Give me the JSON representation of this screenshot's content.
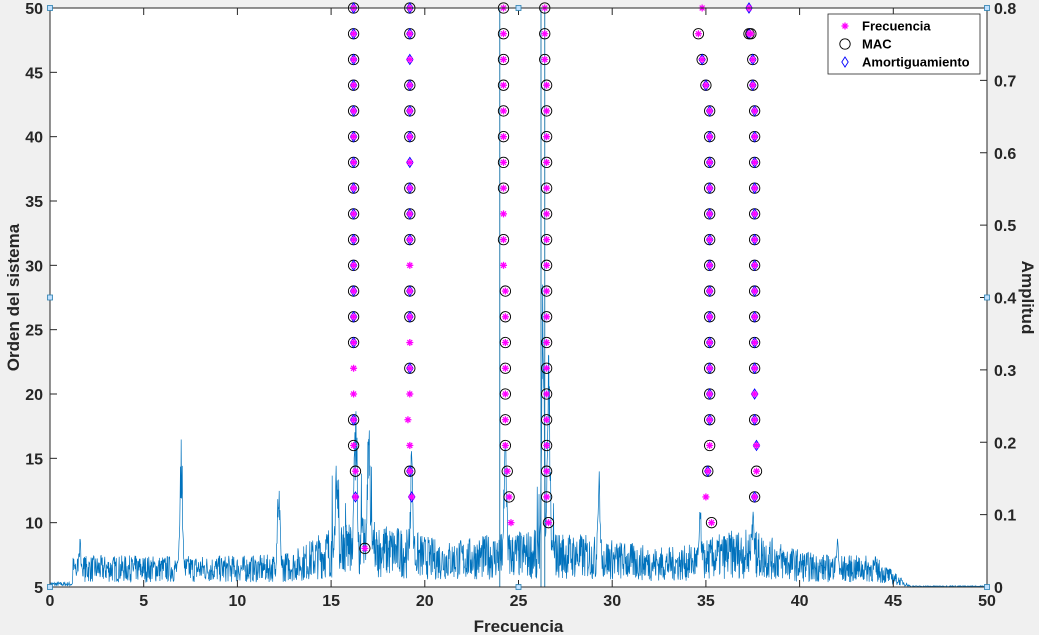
{
  "chart_data": {
    "type": "scatter",
    "title": "",
    "xlabel": "Frecuencia",
    "ylabel_left": "Orden del sistema",
    "ylabel_right": "Amplitud",
    "xlim": [
      0,
      50
    ],
    "ylim_left": [
      5,
      50
    ],
    "ylim_right": [
      0,
      0.8
    ],
    "x_ticks": [
      "0",
      "5",
      "10",
      "15",
      "20",
      "25",
      "30",
      "35",
      "40",
      "45",
      "50"
    ],
    "y_left_ticks": [
      "5",
      "10",
      "15",
      "20",
      "25",
      "30",
      "35",
      "40",
      "45",
      "50"
    ],
    "y_right_ticks": [
      "0",
      "0.1",
      "0.2",
      "0.3",
      "0.4",
      "0.5",
      "0.6",
      "0.7",
      "0.8"
    ],
    "grid": false,
    "legend_position": "top-right",
    "colors": {
      "spectrum": "#0072bd",
      "frecuencia": "#ff00ff",
      "mac": "#000000",
      "amortiguamiento": "#0000ff",
      "background": "#ffffff",
      "figure": "#f0f0f0"
    },
    "legend": [
      {
        "label": "Frecuencia",
        "marker": "asterisk"
      },
      {
        "label": "MAC",
        "marker": "circle"
      },
      {
        "label": "Amortiguamiento",
        "marker": "diamond"
      }
    ],
    "vertical_lines_x": [
      24.0,
      26.2,
      26.4
    ],
    "stability_columns": [
      {
        "x": [
          16.3,
          16.3,
          16.2,
          16.2,
          16.2,
          16.2,
          16.2,
          16.2,
          16.2,
          16.2,
          16.2,
          16.2,
          16.2,
          16.2,
          16.2,
          16.2,
          16.2,
          16.2,
          16.2,
          16.2
        ],
        "orders": [
          12,
          14,
          16,
          18,
          20,
          22,
          24,
          26,
          28,
          30,
          32,
          34,
          36,
          38,
          40,
          42,
          44,
          46,
          48,
          50
        ],
        "mac": [
          0,
          1,
          1,
          1,
          0,
          0,
          1,
          1,
          1,
          1,
          1,
          1,
          1,
          1,
          1,
          1,
          1,
          1,
          1,
          1
        ],
        "damp": [
          1,
          0,
          0,
          1,
          0,
          0,
          1,
          1,
          1,
          1,
          1,
          1,
          1,
          1,
          1,
          1,
          1,
          1,
          1,
          1
        ]
      },
      {
        "x": [
          16.8
        ],
        "orders": [
          8
        ],
        "mac": [
          1
        ],
        "damp": [
          0
        ]
      },
      {
        "x": [
          19.3,
          19.2,
          19.2,
          19.1,
          19.2,
          19.2,
          19.2,
          19.2,
          19.2,
          19.2,
          19.2,
          19.2,
          19.2,
          19.2,
          19.2,
          19.2,
          19.2,
          19.2,
          19.2,
          19.2
        ],
        "orders": [
          12,
          14,
          16,
          18,
          20,
          22,
          24,
          26,
          28,
          30,
          32,
          34,
          36,
          38,
          40,
          42,
          44,
          46,
          48,
          50
        ],
        "mac": [
          0,
          1,
          0,
          0,
          0,
          1,
          0,
          1,
          1,
          0,
          1,
          1,
          1,
          0,
          1,
          1,
          1,
          0,
          1,
          1
        ],
        "damp": [
          1,
          1,
          0,
          0,
          0,
          1,
          0,
          1,
          1,
          0,
          1,
          1,
          1,
          1,
          1,
          1,
          1,
          1,
          1,
          1
        ]
      },
      {
        "x": [
          24.6,
          24.5,
          24.4,
          24.3,
          24.3,
          24.3,
          24.3,
          24.3,
          24.3,
          24.3,
          24.2,
          24.2,
          24.2,
          24.2,
          24.2,
          24.2,
          24.2,
          24.2,
          24.2,
          24.2,
          24.2
        ],
        "orders": [
          10,
          12,
          14,
          16,
          18,
          20,
          22,
          24,
          26,
          28,
          30,
          32,
          34,
          36,
          38,
          40,
          42,
          44,
          46,
          48,
          50
        ],
        "mac": [
          0,
          1,
          1,
          1,
          1,
          1,
          1,
          1,
          1,
          1,
          0,
          1,
          0,
          1,
          1,
          1,
          1,
          1,
          1,
          1,
          1
        ],
        "damp": [
          0,
          0,
          0,
          0,
          0,
          0,
          0,
          0,
          0,
          0,
          0,
          0,
          0,
          0,
          0,
          0,
          0,
          0,
          0,
          0,
          0
        ]
      },
      {
        "x": [
          26.6,
          26.5,
          26.5,
          26.5,
          26.5,
          26.5,
          26.5,
          26.5,
          26.5,
          26.5,
          26.5,
          26.5,
          26.5,
          26.5,
          26.5,
          26.5,
          26.5,
          26.5,
          26.4,
          26.4,
          26.4
        ],
        "orders": [
          10,
          12,
          14,
          16,
          18,
          20,
          22,
          24,
          26,
          28,
          30,
          32,
          34,
          36,
          38,
          40,
          42,
          44,
          46,
          48,
          50
        ],
        "mac": [
          1,
          1,
          1,
          1,
          1,
          1,
          1,
          1,
          1,
          1,
          1,
          1,
          1,
          1,
          1,
          1,
          1,
          1,
          1,
          1,
          1
        ],
        "damp": [
          0,
          0,
          0,
          0,
          0,
          0,
          0,
          0,
          0,
          0,
          0,
          0,
          0,
          0,
          0,
          0,
          0,
          0,
          0,
          0,
          0
        ]
      },
      {
        "x": [
          35.3,
          35.0,
          35.1,
          35.2,
          35.2,
          35.2,
          35.2,
          35.2,
          35.2,
          35.2,
          35.2,
          35.2,
          35.2,
          35.2,
          35.2,
          35.2,
          35.2,
          35.0,
          34.8,
          34.6
        ],
        "orders": [
          10,
          12,
          14,
          16,
          18,
          20,
          22,
          24,
          26,
          28,
          30,
          32,
          34,
          36,
          38,
          40,
          42,
          44,
          46,
          48
        ],
        "mac": [
          1,
          0,
          1,
          1,
          1,
          1,
          1,
          1,
          1,
          1,
          1,
          1,
          1,
          1,
          1,
          1,
          1,
          1,
          1,
          1
        ],
        "damp": [
          0,
          0,
          1,
          0,
          1,
          1,
          1,
          1,
          1,
          1,
          1,
          1,
          1,
          1,
          1,
          1,
          1,
          1,
          1,
          0
        ]
      },
      {
        "x": [
          34.8
        ],
        "orders": [
          50
        ],
        "mac": [
          0
        ],
        "damp": [
          0
        ]
      },
      {
        "x": [
          37.6,
          37.7,
          37.7,
          37.6,
          37.6,
          37.6,
          37.6,
          37.6,
          37.6,
          37.6,
          37.6,
          37.6,
          37.6,
          37.6,
          37.6,
          37.6,
          37.5,
          37.5,
          37.3,
          37.3,
          37.4
        ],
        "orders": [
          12,
          14,
          16,
          18,
          20,
          22,
          24,
          26,
          28,
          30,
          32,
          34,
          36,
          38,
          40,
          42,
          44,
          46,
          48,
          50,
          48
        ],
        "mac": [
          1,
          1,
          0,
          1,
          0,
          1,
          1,
          1,
          1,
          1,
          1,
          1,
          1,
          1,
          1,
          1,
          1,
          1,
          1,
          0,
          1
        ],
        "damp": [
          1,
          0,
          1,
          1,
          1,
          1,
          1,
          1,
          1,
          1,
          1,
          1,
          1,
          1,
          1,
          1,
          1,
          1,
          1,
          1,
          0
        ]
      }
    ],
    "spectrum_peaks": [
      {
        "x": 1.6,
        "amp": 0.07
      },
      {
        "x": 4.5,
        "amp": 0.03
      },
      {
        "x": 7.0,
        "amp": 0.22
      },
      {
        "x": 12.2,
        "amp": 0.15
      },
      {
        "x": 15.3,
        "amp": 0.19
      },
      {
        "x": 16.3,
        "amp": 0.26
      },
      {
        "x": 17.0,
        "amp": 0.25
      },
      {
        "x": 19.3,
        "amp": 0.2
      },
      {
        "x": 24.3,
        "amp": 0.24
      },
      {
        "x": 26.3,
        "amp": 0.44
      },
      {
        "x": 26.6,
        "amp": 0.35
      },
      {
        "x": 29.3,
        "amp": 0.17
      },
      {
        "x": 34.7,
        "amp": 0.11
      },
      {
        "x": 37.5,
        "amp": 0.12
      },
      {
        "x": 42.0,
        "amp": 0.08
      }
    ]
  }
}
